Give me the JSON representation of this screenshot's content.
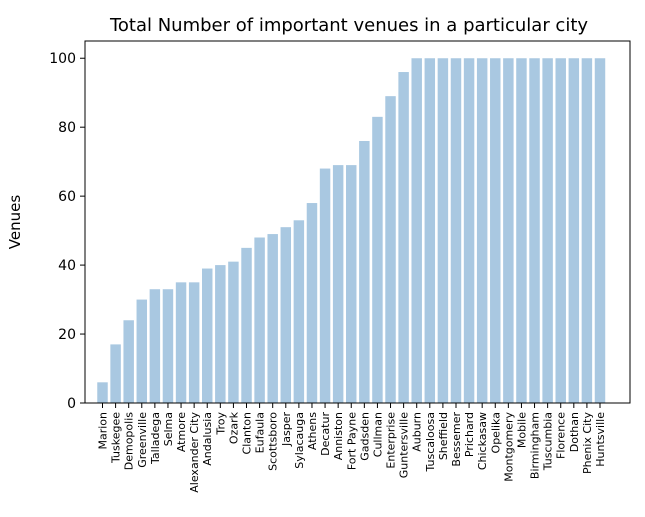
{
  "chart_data": {
    "type": "bar",
    "title": "Total Number of important venues in a particular city",
    "xlabel": "",
    "ylabel": "Venues",
    "ylim": [
      0,
      105
    ],
    "yticks": [
      0,
      20,
      40,
      60,
      80,
      100
    ],
    "bar_color": "#a9c8e1",
    "grid": false,
    "categories": [
      "Marion",
      "Tuskegee",
      "Demopolis",
      "Greenville",
      "Talladega",
      "Selma",
      "Atmore",
      "Alexander City",
      "Andalusia",
      "Troy",
      "Ozark",
      "Clanton",
      "Eufaula",
      "Scottsboro",
      "Jasper",
      "Sylacauga",
      "Athens",
      "Decatur",
      "Anniston",
      "Fort Payne",
      "Gadsden",
      "Cullman",
      "Enterprise",
      "Guntersville",
      "Auburn",
      "Tuscaloosa",
      "Sheffield",
      "Bessemer",
      "Prichard",
      "Chickasaw",
      "Opelika",
      "Montgomery",
      "Mobile",
      "Birmingham",
      "Tuscumbia",
      "Florence",
      "Dothan",
      "Phenix City",
      "Huntsville"
    ],
    "values": [
      6,
      17,
      24,
      30,
      33,
      33,
      35,
      35,
      39,
      40,
      41,
      45,
      48,
      49,
      51,
      53,
      58,
      68,
      69,
      69,
      76,
      83,
      89,
      96,
      100,
      100,
      100,
      100,
      100,
      100,
      100,
      100,
      100,
      100,
      100,
      100,
      100,
      100,
      100
    ]
  }
}
